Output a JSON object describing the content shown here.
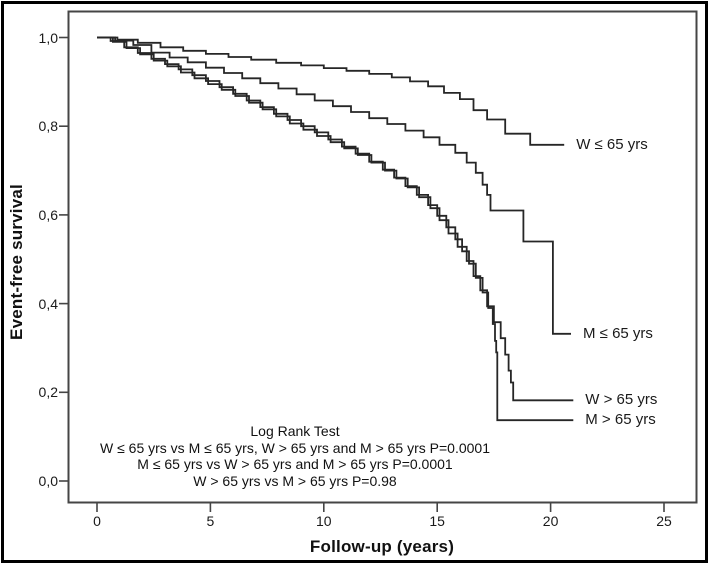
{
  "figure": {
    "y_axis_title": "Event-free survival",
    "x_axis_title": "Follow-up (years)"
  },
  "annotation": {
    "line1": "Log Rank Test",
    "line2": "W ≤ 65 yrs vs M ≤ 65 yrs, W > 65 yrs and M > 65 yrs P=0.0001",
    "line3": "M ≤ 65 yrs vs W > 65 yrs and M > 65 yrs P=0.0001",
    "line4": "W > 65 yrs vs M > 65 yrs P=0.98"
  },
  "colors": {
    "curve": "#262626",
    "axis": "#454545",
    "text": "#111111",
    "frame": "#000000"
  },
  "chart_data": {
    "type": "line",
    "subtype": "kaplan-meier-step",
    "title": "",
    "xlabel": "Follow-up (years)",
    "ylabel": "Event-free survival",
    "xlim": [
      0,
      25
    ],
    "ylim": [
      0.0,
      1.0
    ],
    "grid": false,
    "legend_position": "end-of-curve-labels",
    "x_ticks": [
      {
        "v": 0,
        "label": "0"
      },
      {
        "v": 5,
        "label": "5"
      },
      {
        "v": 10,
        "label": "10"
      },
      {
        "v": 15,
        "label": "15"
      },
      {
        "v": 20,
        "label": "20"
      },
      {
        "v": 25,
        "label": "25"
      }
    ],
    "y_ticks": [
      {
        "v": 1.0,
        "label": "1,0"
      },
      {
        "v": 0.8,
        "label": "0,8"
      },
      {
        "v": 0.6,
        "label": "0,6"
      },
      {
        "v": 0.4,
        "label": "0,4"
      },
      {
        "v": 0.2,
        "label": "0,2"
      },
      {
        "v": 0.0,
        "label": "0,0"
      }
    ],
    "series": [
      {
        "name": "W ≤ 65 yrs",
        "points": [
          [
            0,
            1.0
          ],
          [
            0.9,
            0.995
          ],
          [
            1.8,
            0.988
          ],
          [
            2.8,
            0.978
          ],
          [
            3.8,
            0.97
          ],
          [
            4.8,
            0.963
          ],
          [
            5.8,
            0.956
          ],
          [
            6.8,
            0.95
          ],
          [
            7.9,
            0.943
          ],
          [
            9,
            0.937
          ],
          [
            10,
            0.931
          ],
          [
            11,
            0.925
          ],
          [
            12,
            0.918
          ],
          [
            13,
            0.91
          ],
          [
            13.8,
            0.901
          ],
          [
            14.6,
            0.89
          ],
          [
            15.3,
            0.875
          ],
          [
            16,
            0.861
          ],
          [
            16.6,
            0.836
          ],
          [
            17.2,
            0.815
          ],
          [
            18,
            0.783
          ],
          [
            19.1,
            0.758
          ],
          [
            20.6,
            0.758
          ]
        ]
      },
      {
        "name": "M ≤ 65 yrs",
        "points": [
          [
            0,
            1.0
          ],
          [
            0.8,
            0.993
          ],
          [
            1.6,
            0.983
          ],
          [
            2.4,
            0.966
          ],
          [
            3.2,
            0.955
          ],
          [
            4,
            0.944
          ],
          [
            4.8,
            0.932
          ],
          [
            5.6,
            0.92
          ],
          [
            6.4,
            0.908
          ],
          [
            7.2,
            0.897
          ],
          [
            8,
            0.885
          ],
          [
            8.8,
            0.872
          ],
          [
            9.6,
            0.858
          ],
          [
            10.4,
            0.845
          ],
          [
            11.2,
            0.832
          ],
          [
            12,
            0.818
          ],
          [
            12.8,
            0.805
          ],
          [
            13.6,
            0.79
          ],
          [
            14.4,
            0.775
          ],
          [
            15.1,
            0.758
          ],
          [
            15.8,
            0.74
          ],
          [
            16.3,
            0.718
          ],
          [
            16.7,
            0.695
          ],
          [
            17,
            0.668
          ],
          [
            17.2,
            0.645
          ],
          [
            17.35,
            0.61
          ],
          [
            18.8,
            0.54
          ],
          [
            20.1,
            0.332
          ],
          [
            20.9,
            0.332
          ]
        ]
      },
      {
        "name": "W > 65 yrs",
        "points": [
          [
            0,
            1.0
          ],
          [
            0.7,
            0.99
          ],
          [
            1.3,
            0.976
          ],
          [
            1.9,
            0.962
          ],
          [
            2.5,
            0.948
          ],
          [
            3.1,
            0.935
          ],
          [
            3.7,
            0.921
          ],
          [
            4.3,
            0.908
          ],
          [
            4.9,
            0.895
          ],
          [
            5.5,
            0.882
          ],
          [
            6.1,
            0.868
          ],
          [
            6.7,
            0.853
          ],
          [
            7.3,
            0.838
          ],
          [
            7.9,
            0.822
          ],
          [
            8.5,
            0.806
          ],
          [
            9.1,
            0.792
          ],
          [
            9.7,
            0.778
          ],
          [
            10.3,
            0.764
          ],
          [
            10.9,
            0.75
          ],
          [
            11.5,
            0.735
          ],
          [
            12.1,
            0.718
          ],
          [
            12.7,
            0.7
          ],
          [
            13.2,
            0.682
          ],
          [
            13.7,
            0.662
          ],
          [
            14.2,
            0.64
          ],
          [
            14.7,
            0.615
          ],
          [
            15.1,
            0.588
          ],
          [
            15.5,
            0.558
          ],
          [
            15.9,
            0.528
          ],
          [
            16.3,
            0.496
          ],
          [
            16.6,
            0.462
          ],
          [
            16.9,
            0.43
          ],
          [
            17.2,
            0.394
          ],
          [
            17.5,
            0.358
          ],
          [
            17.8,
            0.322
          ],
          [
            18,
            0.285
          ],
          [
            18.15,
            0.249
          ],
          [
            18.25,
            0.222
          ],
          [
            18.35,
            0.182
          ],
          [
            21,
            0.182
          ]
        ]
      },
      {
        "name": "M > 65 yrs",
        "points": [
          [
            0,
            1.0
          ],
          [
            0.6,
            0.992
          ],
          [
            1.2,
            0.978
          ],
          [
            1.8,
            0.965
          ],
          [
            2.4,
            0.952
          ],
          [
            3,
            0.94
          ],
          [
            3.6,
            0.928
          ],
          [
            4.2,
            0.915
          ],
          [
            4.8,
            0.902
          ],
          [
            5.4,
            0.888
          ],
          [
            6,
            0.873
          ],
          [
            6.6,
            0.858
          ],
          [
            7.2,
            0.843
          ],
          [
            7.8,
            0.828
          ],
          [
            8.4,
            0.814
          ],
          [
            9,
            0.8
          ],
          [
            9.6,
            0.786
          ],
          [
            10.2,
            0.77
          ],
          [
            10.8,
            0.754
          ],
          [
            11.4,
            0.738
          ],
          [
            12,
            0.72
          ],
          [
            12.6,
            0.702
          ],
          [
            13.1,
            0.684
          ],
          [
            13.6,
            0.665
          ],
          [
            14.1,
            0.645
          ],
          [
            14.6,
            0.622
          ],
          [
            15,
            0.598
          ],
          [
            15.4,
            0.572
          ],
          [
            15.8,
            0.545
          ],
          [
            16.1,
            0.518
          ],
          [
            16.4,
            0.49
          ],
          [
            16.7,
            0.458
          ],
          [
            17,
            0.425
          ],
          [
            17.25,
            0.39
          ],
          [
            17.45,
            0.354
          ],
          [
            17.55,
            0.316
          ],
          [
            17.6,
            0.29
          ],
          [
            17.65,
            0.137
          ],
          [
            21,
            0.137
          ]
        ]
      }
    ]
  }
}
